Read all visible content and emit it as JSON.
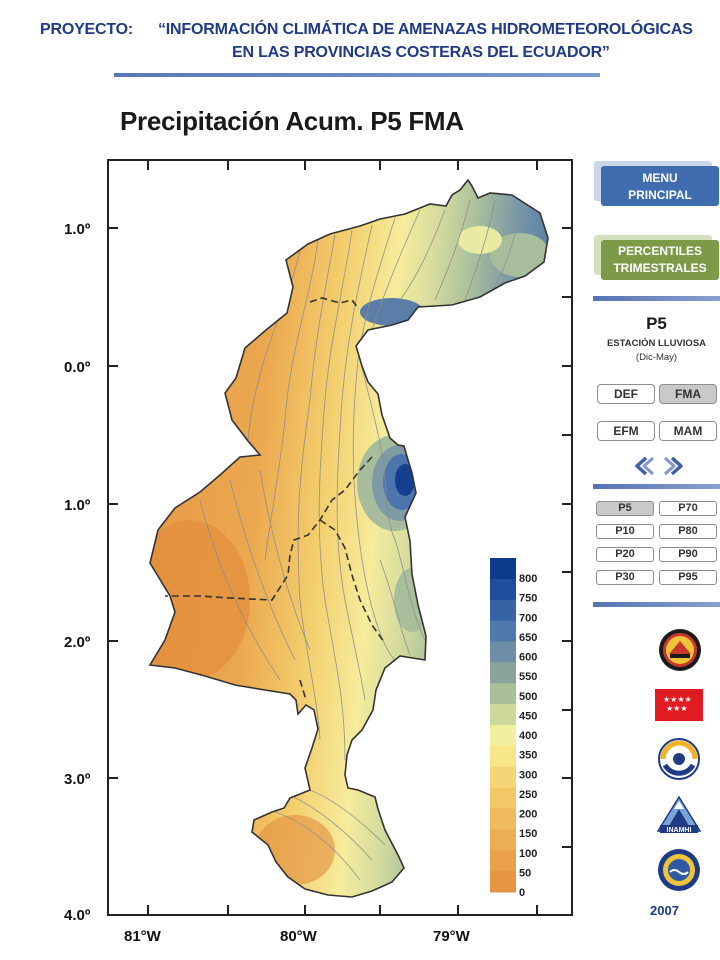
{
  "header": {
    "project_label": "PROYECTO:",
    "title_line1": "“INFORMACIÓN CLIMÁTICA DE AMENAZAS HIDROMETEOROLÓGICAS",
    "title_line2": "EN LAS PROVINCIAS COSTERAS DEL ECUADOR”"
  },
  "map": {
    "title": "Precipitación Acum. P5 FMA",
    "lat_labels": [
      "1.0º",
      "0.0º",
      "1.0º",
      "2.0º",
      "3.0º",
      "4.0º"
    ],
    "lon_labels": [
      "81°W",
      "80°W",
      "79°W"
    ]
  },
  "legend": {
    "values": [
      "800",
      "750",
      "700",
      "650",
      "600",
      "550",
      "500",
      "450",
      "400",
      "350",
      "300",
      "250",
      "200",
      "150",
      "100",
      "50",
      "0"
    ],
    "colors": [
      "#0d3a8a",
      "#1f4e9a",
      "#3563a6",
      "#4f79ad",
      "#6d8ea6",
      "#8aa49c",
      "#a9bf9a",
      "#cdd99b",
      "#f0ef9e",
      "#f7e68a",
      "#f5d677",
      "#f2c867",
      "#efbb5c",
      "#ecae52",
      "#e9a24b",
      "#e59644"
    ]
  },
  "menu": {
    "main_line1": "MENU",
    "main_line2": "PRINCIPAL",
    "pct_line1": "PERCENTILES",
    "pct_line2": "TRIMESTRALES",
    "percentile": "P5",
    "season": "ESTACIÓN LLUVIOSA",
    "season_range": "(Dic-May)",
    "seasons": [
      "DEF",
      "FMA",
      "EFM",
      "MAM"
    ],
    "active_season": "FMA",
    "percentiles": [
      "P5",
      "P70",
      "P10",
      "P80",
      "P20",
      "P90",
      "P30",
      "P95"
    ],
    "active_percentile": "P5",
    "year": "2007"
  }
}
